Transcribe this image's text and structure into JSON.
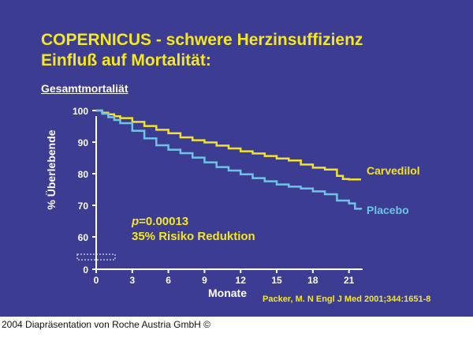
{
  "slide": {
    "title_line1": "COPERNICUS - schwere Herzinsuffizienz",
    "title_line2": "Einfluß auf Mortalität:",
    "subtitle": "Gesamtmortaliät",
    "annotation_p_label": "p",
    "annotation_p_value": "=0.00013",
    "annotation_reduction": "35% Risiko Reduktion",
    "citation": "Packer, M. N Engl J Med 2001;344:1651-8"
  },
  "footer": {
    "text": "2004 Diapräsentation von Roche Austria GmbH ©"
  },
  "colors": {
    "background": "#3c3c93",
    "title": "#f5e81e",
    "carvedilol": "#f2e22a",
    "placebo": "#6fc3e6",
    "text": "#ffffff"
  },
  "chart_data": {
    "type": "line",
    "title": "Gesamtmortaliät",
    "xlabel": "Monate",
    "ylabel": "% Überlebende",
    "xlim": [
      0,
      22.5
    ],
    "ylim": [
      0,
      100
    ],
    "x_ticks": [
      0,
      3,
      6,
      9,
      12,
      15,
      18,
      21
    ],
    "y_ticks": [
      0,
      60,
      70,
      80,
      90,
      100
    ],
    "axis_break": true,
    "series": [
      {
        "name": "Carvedilol",
        "color": "#f2e22a",
        "x": [
          0,
          0.5,
          1,
          1.5,
          2,
          3,
          4,
          5,
          6,
          7,
          8,
          9,
          10,
          11,
          12,
          13,
          14,
          15,
          16,
          17,
          18,
          19,
          20,
          20.5,
          21,
          21.5,
          22
        ],
        "y": [
          100,
          99.3,
          98.8,
          98.2,
          97.6,
          96.4,
          95.1,
          93.9,
          92.8,
          91.5,
          90.6,
          89.9,
          88.9,
          88.0,
          87.1,
          86.4,
          85.6,
          84.8,
          84.2,
          82.9,
          81.9,
          81.3,
          79.3,
          78.3,
          78.2,
          78.2,
          78.2
        ]
      },
      {
        "name": "Placebo",
        "color": "#6fc3e6",
        "x": [
          0,
          0.5,
          1,
          1.5,
          2,
          3,
          4,
          5,
          6,
          7,
          8,
          9,
          10,
          11,
          12,
          13,
          14,
          15,
          16,
          17,
          18,
          19,
          20,
          20.5,
          21,
          21.5,
          22
        ],
        "y": [
          100,
          99.0,
          97.9,
          97.0,
          96.0,
          93.6,
          91.2,
          89.0,
          87.6,
          86.5,
          85.1,
          83.6,
          82.1,
          81.0,
          79.8,
          78.6,
          77.6,
          76.6,
          75.9,
          75.3,
          74.4,
          73.5,
          71.5,
          71.5,
          70.6,
          68.9,
          68.6
        ]
      }
    ]
  }
}
